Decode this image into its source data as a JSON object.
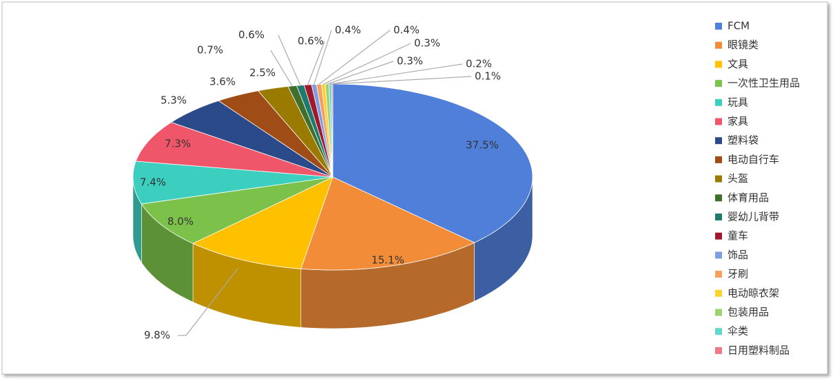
{
  "chart_data": {
    "type": "pie3d",
    "categories": [
      "FCM",
      "眼镜类",
      "文具",
      "一次性卫生用品",
      "玩具",
      "家具",
      "塑料袋",
      "电动自行车",
      "头盔",
      "体育用品",
      "婴幼儿背带",
      "童车",
      "饰品",
      "牙刷",
      "电动晾衣架",
      "包装用品",
      "伞类",
      "日用塑料制品"
    ],
    "values": [
      37.5,
      15.1,
      9.8,
      8.0,
      7.4,
      7.3,
      5.3,
      3.6,
      2.5,
      0.7,
      0.6,
      0.6,
      0.4,
      0.4,
      0.3,
      0.3,
      0.2,
      0.1
    ],
    "value_labels": [
      "37.5%",
      "15.1%",
      "9.8%",
      "8.0%",
      "7.4%",
      "7.3%",
      "5.3%",
      "3.6%",
      "2.5%",
      "0.7%",
      "0.6%",
      "0.6%",
      "0.4%",
      "0.4%",
      "0.3%",
      "0.3%",
      "0.2%",
      "0.1%"
    ],
    "colors": [
      "#4f7fd9",
      "#f28c38",
      "#ffc000",
      "#7cc24a",
      "#3ccfc0",
      "#f0566a",
      "#2a4a8a",
      "#a04c16",
      "#9a7a00",
      "#3f6f2a",
      "#1f7a6e",
      "#a0182e",
      "#7f9ee0",
      "#f5a060",
      "#ffd030",
      "#a0d070",
      "#60d8d0",
      "#f07888"
    ],
    "legend": "right"
  }
}
